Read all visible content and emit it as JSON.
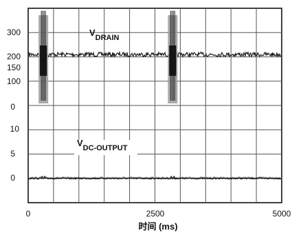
{
  "chart_data": {
    "type": "line",
    "title": "",
    "xlabel": "时间 (ms)",
    "ylabel": "",
    "xlim": [
      0,
      5000
    ],
    "x_ticks": [
      "0",
      "2500",
      "5000"
    ],
    "grid": true,
    "panels": [
      {
        "name": "V_DRAIN",
        "label_main": "V",
        "label_sub": "DRAIN",
        "y_ticks": [
          "300",
          "200",
          "150",
          "100",
          "0"
        ],
        "ylim": [
          -50,
          350
        ],
        "baseline": 160,
        "spike_times": [
          300,
          2850
        ],
        "spike_range": [
          -30,
          340
        ]
      },
      {
        "name": "V_DC-OUTPUT",
        "label_main": "V",
        "label_sub": "DC-OUTPUT",
        "y_ticks": [
          "10",
          "5",
          "0"
        ],
        "ylim": [
          -5,
          15
        ],
        "baseline": 0,
        "spike_times": [
          300,
          2850
        ],
        "spike_range": [
          0,
          0.3
        ]
      }
    ]
  }
}
